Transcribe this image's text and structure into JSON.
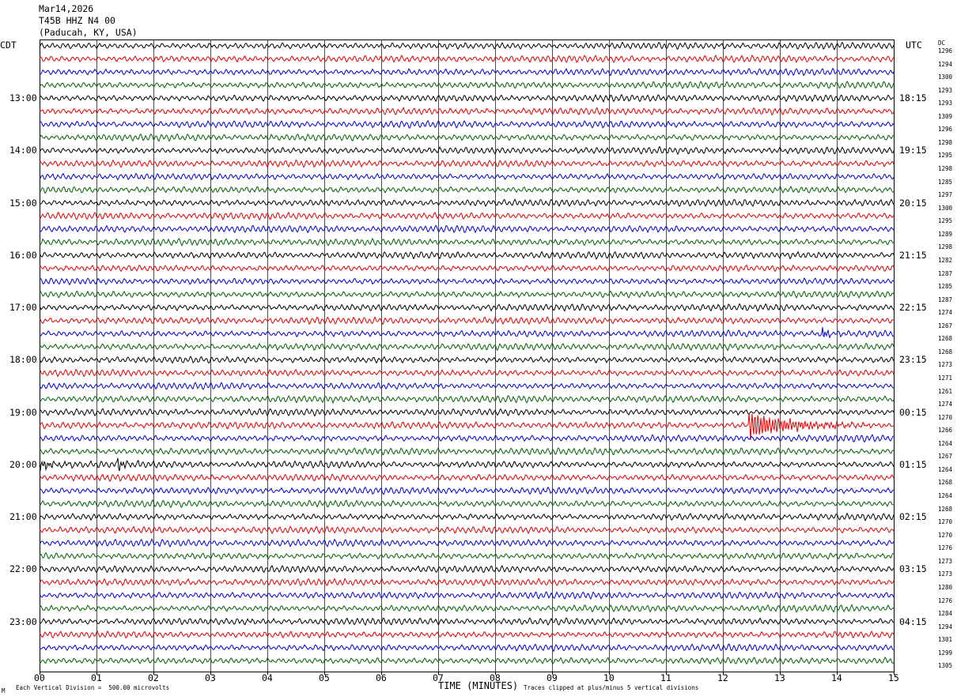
{
  "header": {
    "date": "Mar14,2026",
    "station": "T45B HHZ N4 00",
    "location": "(Paducah, KY, USA)"
  },
  "left_tz": "CDT",
  "right_tz": "UTC",
  "dc_header": "DC",
  "footer": {
    "scale": "Each Vertical Division =  500.00 microvolts",
    "clip": "Traces clipped at plus/minus 5 vertical divisions",
    "mark": "M"
  },
  "colors": {
    "trace_cycle": [
      "#000000",
      "#e00000",
      "#0000d0",
      "#006000"
    ],
    "grid": "#000000"
  },
  "chart_data": {
    "type": "line",
    "title": "Mar14,2026 T45B HHZ N4 00 (Paducah, KY, USA)",
    "xlabel": "TIME (MINUTES)",
    "x_ticks": [
      "00",
      "01",
      "02",
      "03",
      "04",
      "05",
      "06",
      "07",
      "08",
      "09",
      "10",
      "11",
      "12",
      "13",
      "14",
      "15"
    ],
    "xlim": [
      0,
      15
    ],
    "rows_per_hour": 4,
    "row_minutes": 15,
    "left_hour_labels": [
      "13:00",
      "14:00",
      "15:00",
      "16:00",
      "17:00",
      "18:00",
      "19:00",
      "20:00",
      "21:00",
      "22:00",
      "23:00"
    ],
    "right_hour_labels": [
      "18:15",
      "19:15",
      "20:15",
      "21:15",
      "22:15",
      "23:15",
      "00:15",
      "01:15",
      "02:15",
      "03:15",
      "04:15"
    ],
    "dc_offsets": [
      1296,
      1294,
      1300,
      1293,
      1293,
      1309,
      1296,
      1298,
      1295,
      1298,
      1285,
      1297,
      1300,
      1295,
      1289,
      1298,
      1282,
      1287,
      1285,
      1287,
      1274,
      1267,
      1268,
      1268,
      1273,
      1271,
      1261,
      1274,
      1270,
      1266,
      1264,
      1267,
      1264,
      1268,
      1264,
      1268,
      1270,
      1270,
      1276,
      1273,
      1273,
      1280,
      1276,
      1284,
      1294,
      1301,
      1299,
      1305
    ],
    "events": [
      {
        "row": 29,
        "start_min": 12.45,
        "end_min": 14.6,
        "peak_divisions": 5
      },
      {
        "row": 32,
        "start_min": 0.0,
        "end_min": 0.6,
        "peak_divisions": 2
      },
      {
        "row": 32,
        "start_min": 1.35,
        "end_min": 1.75,
        "peak_divisions": 2.5
      },
      {
        "row": 22,
        "start_min": 13.75,
        "end_min": 14.0,
        "peak_divisions": 2
      }
    ]
  }
}
